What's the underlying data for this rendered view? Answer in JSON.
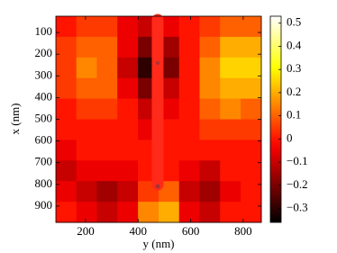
{
  "chart_data": {
    "type": "heatmap",
    "x_label": "y (nm)",
    "y_label": "x (nm)",
    "x": [
      126,
      204,
      282,
      360,
      439,
      517,
      595,
      673,
      751,
      830
    ],
    "y": [
      72,
      168,
      262,
      358,
      452,
      548,
      642,
      738,
      832,
      928
    ],
    "values": [
      [
        0,
        0.05,
        0.05,
        -0.05,
        -0.1,
        -0.05,
        0,
        0.05,
        0.1,
        0.1
      ],
      [
        0.05,
        0.1,
        0.1,
        -0.05,
        -0.2,
        -0.15,
        0,
        0.1,
        0.2,
        0.2
      ],
      [
        0.05,
        0.15,
        0.1,
        -0.1,
        -0.3,
        -0.2,
        0,
        0.15,
        0.25,
        0.25
      ],
      [
        0.05,
        0.1,
        0.1,
        -0.05,
        -0.2,
        -0.1,
        0,
        0.15,
        0.2,
        0.2
      ],
      [
        0,
        0.05,
        0.05,
        0,
        -0.1,
        -0.05,
        0,
        0.1,
        0.15,
        0.1
      ],
      [
        0,
        0,
        0,
        0,
        -0.05,
        0,
        0,
        0.05,
        0.05,
        0.05
      ],
      [
        -0.05,
        0,
        0,
        0,
        0,
        0,
        0,
        0,
        0,
        0
      ],
      [
        -0.1,
        -0.05,
        -0.05,
        -0.05,
        0,
        0,
        -0.05,
        -0.1,
        0,
        0
      ],
      [
        -0.05,
        -0.1,
        -0.15,
        -0.1,
        0.05,
        0.1,
        -0.1,
        -0.15,
        -0.05,
        0
      ],
      [
        0,
        -0.05,
        -0.1,
        -0.05,
        0.15,
        0.2,
        -0.05,
        -0.1,
        0,
        0
      ]
    ],
    "xlim": [
      87,
      869
    ],
    "ylim": [
      25,
      975
    ],
    "y_reversed": true,
    "xticks": [
      200,
      400,
      600,
      800
    ],
    "yticks": [
      100,
      200,
      300,
      400,
      500,
      600,
      700,
      800,
      900
    ],
    "colormap": "hot",
    "clim": [
      -0.36,
      0.53
    ],
    "cticks": [
      {
        "value": -0.3,
        "label": "−0.3"
      },
      {
        "value": -0.2,
        "label": "−0.2"
      },
      {
        "value": -0.1,
        "label": "−0.1"
      },
      0,
      0.1,
      0.2,
      0.3,
      0.4,
      0.5
    ]
  }
}
